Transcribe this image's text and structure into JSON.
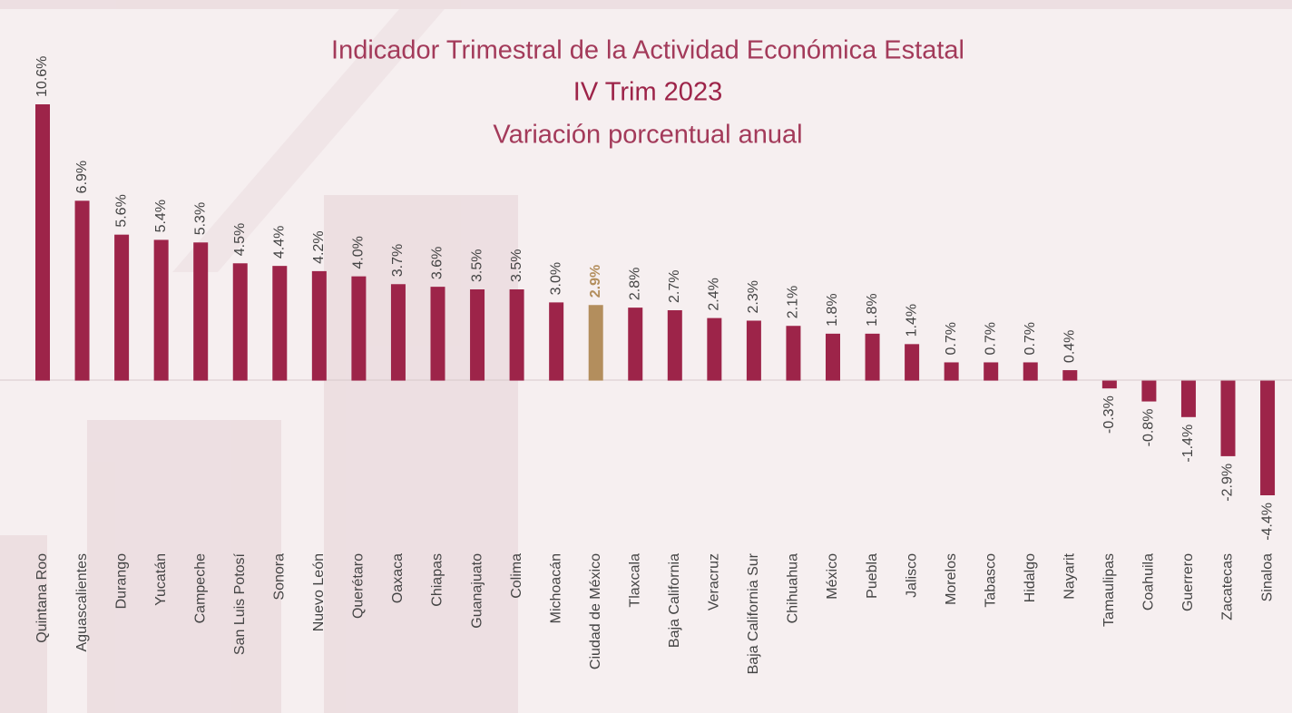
{
  "chart_data": {
    "type": "bar",
    "title": "Indicador Trimestral de la Actividad Económica Estatal",
    "subtitle": "IV Trim 2023",
    "subtitle2": "Variación porcentual anual",
    "categories": [
      "Quintana Roo",
      "Aguascalientes",
      "Durango",
      "Yucatán",
      "Campeche",
      "San Luis Potosí",
      "Sonora",
      "Nuevo León",
      "Querétaro",
      "Oaxaca",
      "Chiapas",
      "Guanajuato",
      "Colima",
      "Michoacán",
      "Ciudad de México",
      "Tlaxcala",
      "Baja California",
      "Veracruz",
      "Baja California Sur",
      "Chihuahua",
      "México",
      "Puebla",
      "Jalisco",
      "Morelos",
      "Tabasco",
      "Hidalgo",
      "Nayarit",
      "Tamaulipas",
      "Coahuila",
      "Guerrero",
      "Zacatecas",
      "Sinaloa"
    ],
    "values": [
      10.6,
      6.9,
      5.6,
      5.4,
      5.3,
      4.5,
      4.4,
      4.2,
      4.0,
      3.7,
      3.6,
      3.5,
      3.5,
      3.0,
      2.9,
      2.8,
      2.7,
      2.4,
      2.3,
      2.1,
      1.8,
      1.8,
      1.4,
      0.7,
      0.7,
      0.7,
      0.4,
      -0.3,
      -0.8,
      -1.4,
      -2.9,
      -4.4
    ],
    "value_labels": [
      "10.6%",
      "6.9%",
      "5.6%",
      "5.4%",
      "5.3%",
      "4.5%",
      "4.4%",
      "4.2%",
      "4.0%",
      "3.7%",
      "3.6%",
      "3.5%",
      "3.5%",
      "3.0%",
      "2.9%",
      "2.8%",
      "2.7%",
      "2.4%",
      "2.3%",
      "2.1%",
      "1.8%",
      "1.8%",
      "1.4%",
      "0.7%",
      "0.7%",
      "0.7%",
      "0.4%",
      "-0.3%",
      "-0.8%",
      "-1.4%",
      "-2.9%",
      "-4.4%"
    ],
    "colors": [
      "#9d2449",
      "#9d2449",
      "#9d2449",
      "#9d2449",
      "#9d2449",
      "#9d2449",
      "#9d2449",
      "#9d2449",
      "#9d2449",
      "#9d2449",
      "#9d2449",
      "#9d2449",
      "#9d2449",
      "#9d2449",
      "#b38e5d",
      "#9d2449",
      "#9d2449",
      "#9d2449",
      "#9d2449",
      "#9d2449",
      "#9d2449",
      "#9d2449",
      "#9d2449",
      "#9d2449",
      "#9d2449",
      "#9d2449",
      "#9d2449",
      "#9d2449",
      "#9d2449",
      "#9d2449",
      "#9d2449",
      "#9d2449"
    ]
  }
}
